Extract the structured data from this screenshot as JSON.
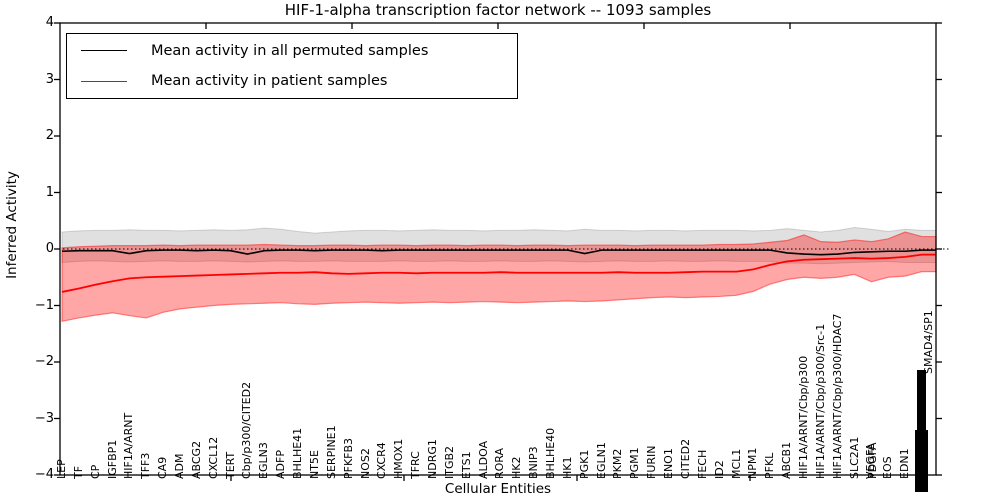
{
  "title": "HIF-1-alpha transcription factor network -- 1093 samples",
  "axes": {
    "xlabel": "Cellular Entities",
    "ylabel": "Inferred Activity",
    "y_tick_labels": [
      "4",
      "3",
      "2",
      "1",
      "0",
      "−1",
      "−2",
      "−3",
      "−4"
    ],
    "y_tick_values": [
      4,
      3,
      2,
      1,
      0,
      -1,
      -2,
      -3,
      -4
    ],
    "ylim": [
      -4,
      4
    ]
  },
  "legend": {
    "items": [
      {
        "label": "Mean activity in all permuted samples",
        "color": "#000000"
      },
      {
        "label": "Mean activity in patient samples",
        "color": "#ff0000"
      }
    ],
    "position": "upper left"
  },
  "colors": {
    "permuted_line": "#000000",
    "patient_line": "#ff0000",
    "permuted_band": "rgba(0,0,0,0.12)",
    "patient_band": "rgba(255,0,0,0.35)",
    "permuted_band_edge": "rgba(0,0,0,0.15)",
    "patient_band_edge": "rgba(255,0,0,0.45)",
    "background": "#ffffff"
  },
  "chart_data": {
    "type": "line",
    "title": "HIF-1-alpha transcription factor network -- 1093 samples",
    "xlabel": "Cellular Entities",
    "ylabel": "Inferred Activity",
    "ylim": [
      -4,
      4
    ],
    "grid": false,
    "legend_position": "upper left",
    "zero_reference_line": 0,
    "categories": [
      "LEP",
      "TF",
      "CP",
      "IGFBP1",
      "HIF1A/ARNT",
      "TFF3",
      "CA9",
      "ADM",
      "ABCG2",
      "CXCL12",
      "TERT",
      "Cbp/p300/CITED2",
      "EGLN3",
      "ADFP",
      "BHLHE41",
      "NT5E",
      "SERPINE1",
      "PFKFB3",
      "NOS2",
      "CXCR4",
      "HMOX1",
      "TFRC",
      "NDRG1",
      "ITGB2",
      "ETS1",
      "ALDOA",
      "RORA",
      "HK2",
      "BNIP3",
      "BHLHE40",
      "HK1",
      "PGK1",
      "EGLN1",
      "PKM2",
      "PGM1",
      "FURIN",
      "ENO1",
      "CITED2",
      "FECH",
      "ID2",
      "MCL1",
      "NPM1",
      "PFKL",
      "ABCB1",
      "HIF1A/ARNT/Cbp/p300",
      "HIF1A/ARNT/Cbp/p300/Src-1",
      "HIF1A/ARNT/Cbp/p300/HDAC7",
      "SLC2A1",
      "VEGFA",
      "EOS",
      "EDN1"
    ],
    "overlapping_label": {
      "index": 48,
      "label": "PDGFA"
    },
    "right_edge_cluster": {
      "visible_fragment": "SMAD4/SP1",
      "illegible_overlapping_labels": true
    },
    "series": [
      {
        "name": "Mean activity in all permuted samples",
        "color": "#000000",
        "values": [
          -0.04,
          -0.03,
          -0.03,
          -0.03,
          -0.08,
          -0.03,
          -0.02,
          -0.02,
          -0.03,
          -0.02,
          -0.03,
          -0.09,
          -0.03,
          -0.02,
          -0.02,
          -0.03,
          -0.02,
          -0.02,
          -0.02,
          -0.03,
          -0.02,
          -0.02,
          -0.02,
          -0.02,
          -0.02,
          -0.02,
          -0.02,
          -0.02,
          -0.02,
          -0.02,
          -0.02,
          -0.08,
          -0.02,
          -0.02,
          -0.02,
          -0.02,
          -0.02,
          -0.02,
          -0.02,
          -0.02,
          -0.02,
          -0.02,
          -0.02,
          -0.07,
          -0.09,
          -0.1,
          -0.09,
          -0.06,
          -0.05,
          -0.04,
          -0.04,
          -0.02
        ],
        "band_upper": [
          0.3,
          0.32,
          0.33,
          0.33,
          0.34,
          0.33,
          0.33,
          0.32,
          0.33,
          0.34,
          0.33,
          0.34,
          0.37,
          0.35,
          0.31,
          0.28,
          0.3,
          0.32,
          0.33,
          0.33,
          0.32,
          0.33,
          0.34,
          0.33,
          0.33,
          0.32,
          0.33,
          0.33,
          0.34,
          0.33,
          0.32,
          0.35,
          0.33,
          0.33,
          0.32,
          0.33,
          0.33,
          0.32,
          0.33,
          0.33,
          0.33,
          0.32,
          0.33,
          0.36,
          0.33,
          0.3,
          0.33,
          0.38,
          0.35,
          0.31,
          0.35,
          0.33
        ],
        "band_lower": [
          -0.24,
          -0.22,
          -0.21,
          -0.22,
          -0.23,
          -0.22,
          -0.21,
          -0.22,
          -0.22,
          -0.21,
          -0.22,
          -0.23,
          -0.22,
          -0.21,
          -0.22,
          -0.22,
          -0.21,
          -0.22,
          -0.22,
          -0.22,
          -0.21,
          -0.22,
          -0.22,
          -0.21,
          -0.22,
          -0.22,
          -0.21,
          -0.22,
          -0.22,
          -0.21,
          -0.22,
          -0.23,
          -0.22,
          -0.21,
          -0.22,
          -0.22,
          -0.21,
          -0.22,
          -0.22,
          -0.21,
          -0.22,
          -0.22,
          -0.22,
          -0.25,
          -0.25,
          -0.26,
          -0.25,
          -0.24,
          -0.23,
          -0.22,
          -0.24,
          -0.24
        ]
      },
      {
        "name": "Mean activity in patient samples",
        "color": "#ff0000",
        "values": [
          -0.76,
          -0.7,
          -0.63,
          -0.57,
          -0.52,
          -0.5,
          -0.49,
          -0.48,
          -0.47,
          -0.46,
          -0.45,
          -0.44,
          -0.43,
          -0.42,
          -0.42,
          -0.41,
          -0.43,
          -0.44,
          -0.43,
          -0.42,
          -0.42,
          -0.43,
          -0.42,
          -0.42,
          -0.42,
          -0.42,
          -0.41,
          -0.42,
          -0.42,
          -0.42,
          -0.42,
          -0.42,
          -0.42,
          -0.41,
          -0.42,
          -0.42,
          -0.42,
          -0.41,
          -0.4,
          -0.4,
          -0.4,
          -0.36,
          -0.28,
          -0.22,
          -0.19,
          -0.18,
          -0.17,
          -0.16,
          -0.17,
          -0.16,
          -0.14,
          -0.1
        ],
        "band_upper": [
          0.02,
          0.04,
          0.05,
          0.06,
          0.06,
          0.06,
          0.07,
          0.06,
          0.07,
          0.07,
          0.07,
          0.07,
          0.08,
          0.07,
          0.06,
          0.06,
          0.07,
          0.07,
          0.06,
          0.07,
          0.07,
          0.06,
          0.07,
          0.07,
          0.06,
          0.07,
          0.07,
          0.06,
          0.07,
          0.07,
          0.06,
          0.07,
          0.07,
          0.07,
          0.06,
          0.07,
          0.07,
          0.07,
          0.07,
          0.08,
          0.08,
          0.09,
          0.12,
          0.15,
          0.25,
          0.13,
          0.12,
          0.16,
          0.13,
          0.18,
          0.3,
          0.22
        ],
        "band_lower": [
          -1.28,
          -1.22,
          -1.17,
          -1.13,
          -1.18,
          -1.22,
          -1.12,
          -1.06,
          -1.03,
          -1.0,
          -0.98,
          -0.97,
          -0.96,
          -0.95,
          -0.97,
          -0.98,
          -0.96,
          -0.95,
          -0.94,
          -0.95,
          -0.96,
          -0.95,
          -0.94,
          -0.95,
          -0.94,
          -0.93,
          -0.94,
          -0.95,
          -0.94,
          -0.93,
          -0.92,
          -0.93,
          -0.92,
          -0.9,
          -0.88,
          -0.86,
          -0.85,
          -0.86,
          -0.85,
          -0.84,
          -0.82,
          -0.75,
          -0.62,
          -0.54,
          -0.5,
          -0.52,
          -0.5,
          -0.45,
          -0.58,
          -0.5,
          -0.48,
          -0.4
        ]
      }
    ]
  }
}
